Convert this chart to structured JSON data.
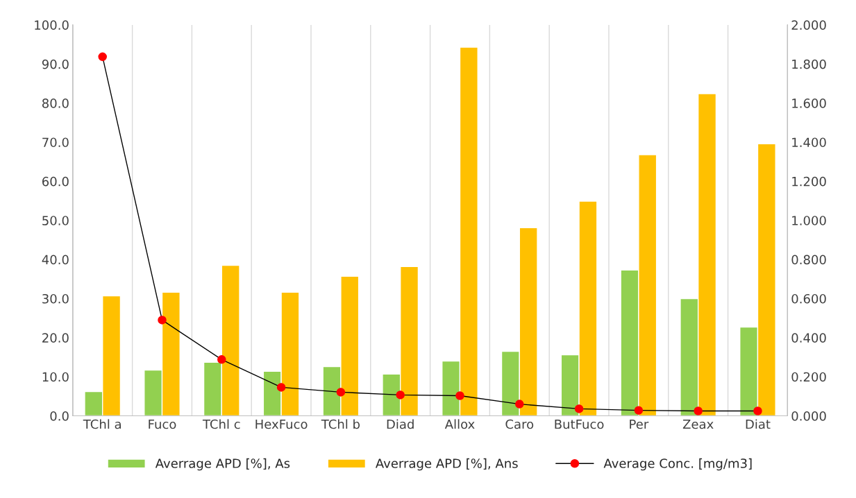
{
  "chart_data": {
    "type": "bar",
    "categories": [
      "TChl a",
      "Fuco",
      "TChl c",
      "HexFuco",
      "TChl b",
      "Diad",
      "Allox",
      "Caro",
      "ButFuco",
      "Per",
      "Zeax",
      "Diat"
    ],
    "series": [
      {
        "name": "Averrage APD [%], As",
        "color": "#92d050",
        "values": [
          6.2,
          11.7,
          13.7,
          11.4,
          12.6,
          10.7,
          14.0,
          16.5,
          15.6,
          37.3,
          30.0,
          22.7
        ]
      },
      {
        "name": "Averrage APD [%], Ans",
        "color": "#ffc000",
        "values": [
          30.7,
          31.6,
          38.5,
          31.6,
          35.7,
          38.2,
          94.3,
          48.1,
          54.9,
          66.8,
          82.4,
          69.6
        ]
      },
      {
        "name": "Average Conc. [mg/m3]",
        "type": "line",
        "axis": "y2",
        "color": "#ff0000",
        "marker": "circle",
        "values": [
          1.837,
          0.49,
          0.288,
          0.146,
          0.121,
          0.107,
          0.103,
          0.06,
          0.036,
          0.028,
          0.025,
          0.025
        ]
      }
    ],
    "ylim": [
      0,
      100
    ],
    "yticks": [
      {
        "value": 0,
        "label": "0.0"
      },
      {
        "value": 10,
        "label": "10.0"
      },
      {
        "value": 20,
        "label": "20.0"
      },
      {
        "value": 30,
        "label": "30.0"
      },
      {
        "value": 40,
        "label": "40.0"
      },
      {
        "value": 50,
        "label": "50.0"
      },
      {
        "value": 60,
        "label": "60.0"
      },
      {
        "value": 70,
        "label": "70.0"
      },
      {
        "value": 80,
        "label": "80.0"
      },
      {
        "value": 90,
        "label": "90.0"
      },
      {
        "value": 100,
        "label": "100.0"
      }
    ],
    "y2lim": [
      0,
      2
    ],
    "y2ticks": [
      {
        "value": 0,
        "label": "0.000"
      },
      {
        "value": 0.2,
        "label": "0.200"
      },
      {
        "value": 0.4,
        "label": "0.400"
      },
      {
        "value": 0.6,
        "label": "0.600"
      },
      {
        "value": 0.8,
        "label": "0.800"
      },
      {
        "value": 1.0,
        "label": "1.000"
      },
      {
        "value": 1.2,
        "label": "1.200"
      },
      {
        "value": 1.4,
        "label": "1.400"
      },
      {
        "value": 1.6,
        "label": "1.600"
      },
      {
        "value": 1.8,
        "label": "1.800"
      },
      {
        "value": 2.0,
        "label": "2.000"
      }
    ],
    "grid": "x",
    "legend": "bottom"
  }
}
